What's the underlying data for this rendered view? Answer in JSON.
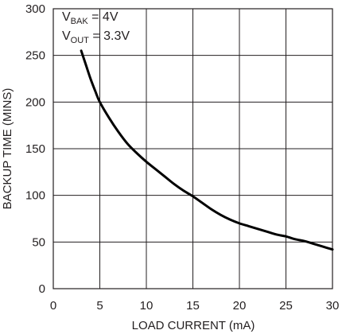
{
  "chart_data": {
    "type": "line",
    "title": "",
    "xlabel": "LOAD CURRENT (mA)",
    "ylabel": "BACKUP TIME (MINS)",
    "xlim": [
      0,
      30
    ],
    "ylim": [
      0,
      300
    ],
    "xticks": [
      0,
      5,
      10,
      15,
      20,
      25,
      30
    ],
    "yticks": [
      0,
      50,
      100,
      150,
      200,
      250,
      300
    ],
    "grid": true,
    "legend": "none",
    "line_color": "#000000",
    "grid_color": "#231f20",
    "annotations": [
      {
        "main": "V",
        "sub": "BAK",
        "rest": " = 4V"
      },
      {
        "main": "V",
        "sub": "OUT",
        "rest": " = 3.3V"
      }
    ],
    "series": [
      {
        "x": [
          3,
          3.5,
          4,
          4.5,
          5,
          6,
          7,
          8,
          9,
          10,
          11,
          12,
          13,
          14,
          15,
          16,
          17,
          18,
          19,
          20,
          21,
          22,
          23,
          24,
          25,
          26,
          27,
          28,
          29,
          30
        ],
        "y": [
          255,
          240,
          225,
          212,
          200,
          183,
          168,
          155,
          145,
          136,
          128,
          120,
          112,
          105,
          99,
          92,
          85,
          79,
          74,
          70,
          67,
          64,
          61,
          58,
          56,
          53,
          51,
          48,
          45,
          42
        ]
      }
    ]
  }
}
